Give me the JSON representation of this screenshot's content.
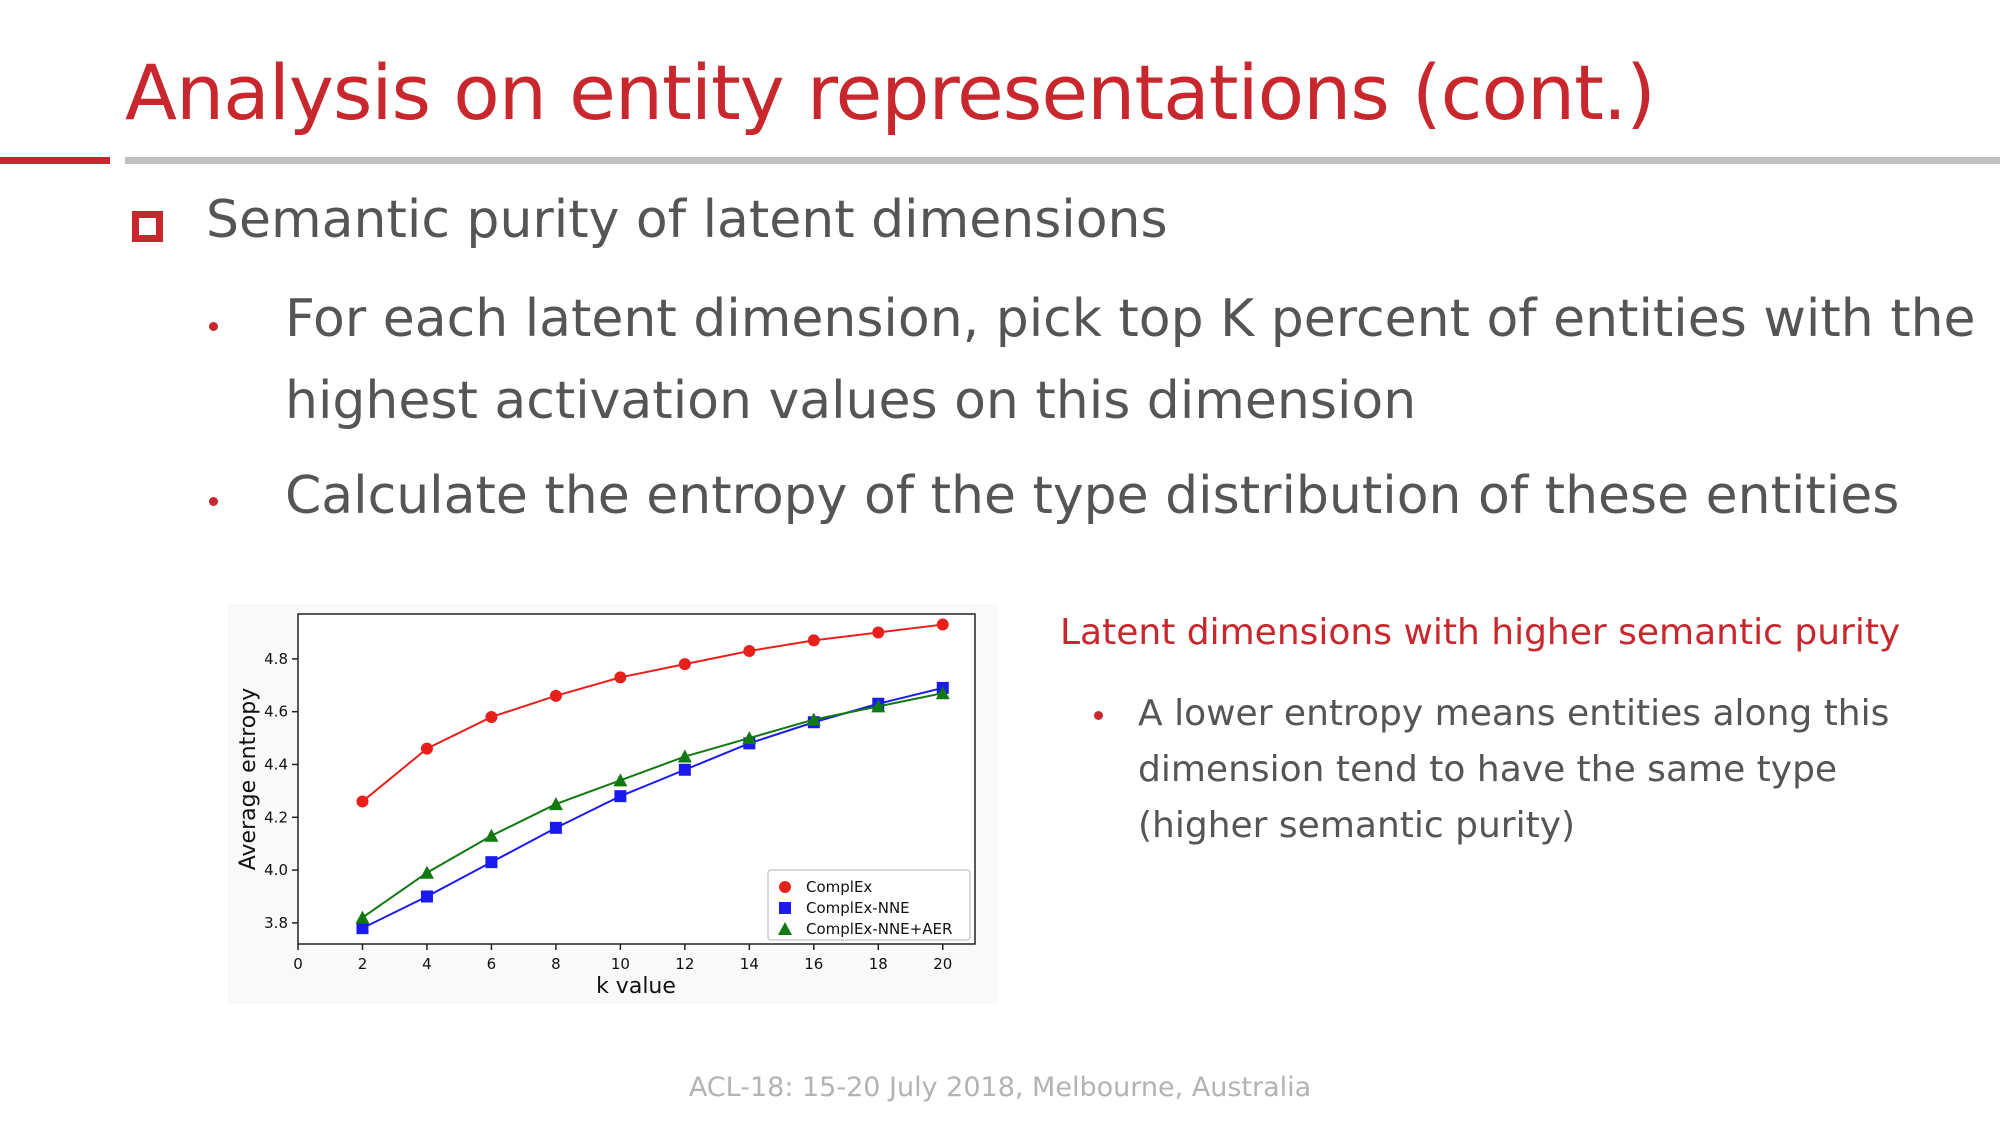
{
  "slide": {
    "title": "Analysis on entity representations (cont.)",
    "bullet1": "Semantic purity of latent dimensions",
    "sub1_line1": "For each latent dimension, pick top K percent of entities with the",
    "sub1_line2": "highest activation values on this dimension",
    "sub2": "Calculate the entropy of the type distribution of these entities",
    "side_heading": "Latent dimensions with higher semantic purity",
    "side_line1": "A lower entropy means entities along this",
    "side_line2": "dimension tend to have the same type",
    "side_line3": "(higher semantic purity)",
    "footer": "ACL-18: 15-20 July 2018, Melbourne, Australia"
  },
  "colors": {
    "accent": "#c8282d",
    "text": "#555555",
    "rule": "#bfbfbf",
    "footer": "#b3b3b3"
  },
  "chart_data": {
    "type": "line",
    "xlabel": "k value",
    "ylabel": "Average entropy",
    "xlim": [
      0,
      21
    ],
    "ylim": [
      3.72,
      4.97
    ],
    "xticks": [
      0,
      2,
      4,
      6,
      8,
      10,
      12,
      14,
      16,
      18,
      20
    ],
    "yticks": [
      3.8,
      4.0,
      4.2,
      4.4,
      4.6,
      4.8
    ],
    "x": [
      2,
      4,
      6,
      8,
      10,
      12,
      14,
      16,
      18,
      20
    ],
    "legend_position": "lower-right",
    "grid": false,
    "series": [
      {
        "name": "ComplEx",
        "color": "#e8201c",
        "marker": "circle",
        "values": [
          4.26,
          4.46,
          4.58,
          4.66,
          4.73,
          4.78,
          4.83,
          4.87,
          4.9,
          4.93
        ]
      },
      {
        "name": "ComplEx-NNE",
        "color": "#1a1aee",
        "marker": "square",
        "values": [
          3.78,
          3.9,
          4.03,
          4.16,
          4.28,
          4.38,
          4.48,
          4.56,
          4.63,
          4.69
        ]
      },
      {
        "name": "ComplEx-NNE+AER",
        "color": "#127812",
        "marker": "triangle",
        "values": [
          3.82,
          3.99,
          4.13,
          4.25,
          4.34,
          4.43,
          4.5,
          4.57,
          4.62,
          4.67
        ]
      }
    ]
  }
}
